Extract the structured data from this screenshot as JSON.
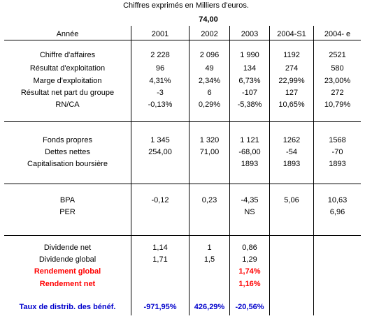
{
  "caption": "Chiffres exprimés en Milliers d'euros.",
  "top_value": "74,00",
  "header": {
    "label": "Année",
    "years": [
      "2001",
      "2002",
      "2003",
      "2004-S1",
      "2004- e"
    ]
  },
  "rows": {
    "ca": {
      "label": "Chiffre d'affaires",
      "values": [
        "2 228",
        "2 096",
        "1 990",
        "1192",
        "2521"
      ]
    },
    "re": {
      "label": "Résultat d'exploitation",
      "values": [
        "96",
        "49",
        "134",
        "274",
        "580"
      ]
    },
    "me": {
      "label": "Marge d'exploitation",
      "values": [
        "4,31%",
        "2,34%",
        "6,73%",
        "22,99%",
        "23,00%"
      ]
    },
    "rn": {
      "label": "Résultat net part du groupe",
      "values": [
        "-3",
        "6",
        "-107",
        "127",
        "272"
      ]
    },
    "rnca": {
      "label": "RN/CA",
      "values": [
        "-0,13%",
        "0,29%",
        "-5,38%",
        "10,65%",
        "10,79%"
      ]
    },
    "fp": {
      "label": "Fonds propres",
      "values": [
        "1 345",
        "1 320",
        "1 121",
        "1262",
        "1568"
      ]
    },
    "dn": {
      "label": "Dettes nettes",
      "values": [
        "254,00",
        "71,00",
        "-68,00",
        "-54",
        "-70"
      ]
    },
    "cap": {
      "label": "Capitalisation boursière",
      "values": [
        "",
        "",
        "1893",
        "1893",
        "1893"
      ]
    },
    "bpa": {
      "label": "BPA",
      "values": [
        "-0,12",
        "0,23",
        "-4,35",
        "5,06",
        "10,63"
      ]
    },
    "per": {
      "label": "PER",
      "values": [
        "",
        "",
        "NS",
        "",
        "6,96"
      ]
    },
    "divnet": {
      "label": "Dividende net",
      "values": [
        "1,14",
        "1",
        "0,86",
        "",
        ""
      ]
    },
    "divglob": {
      "label": "Dividende global",
      "values": [
        "1,71",
        "1,5",
        "1,29",
        "",
        ""
      ]
    },
    "rendglob": {
      "label": "Rendement global",
      "values": [
        "",
        "",
        "1,74%",
        "",
        ""
      ]
    },
    "rendnet": {
      "label": "Rendement net",
      "values": [
        "",
        "",
        "1,16%",
        "",
        ""
      ]
    },
    "taux": {
      "label": "Taux de distrib. des bénéf.",
      "values": [
        "-971,95%",
        "426,29%",
        "-20,56%",
        "",
        ""
      ]
    }
  },
  "colors": {
    "highlight_red": "#ff0000",
    "highlight_blue": "#0000cc"
  }
}
